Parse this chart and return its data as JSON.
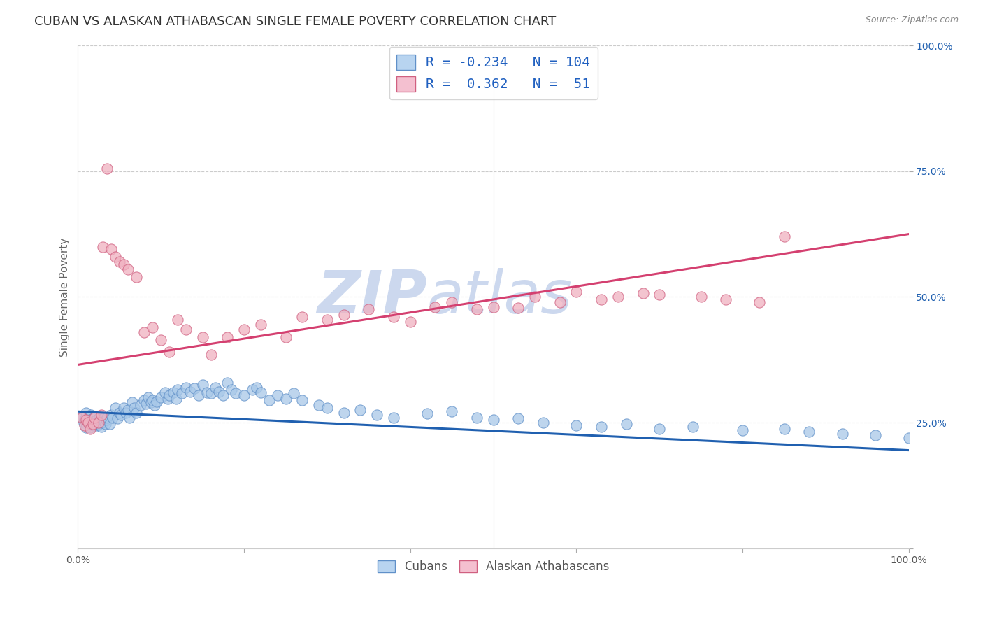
{
  "title": "CUBAN VS ALASKAN ATHABASCAN SINGLE FEMALE POVERTY CORRELATION CHART",
  "source": "Source: ZipAtlas.com",
  "ylabel": "Single Female Poverty",
  "xlim": [
    0.0,
    1.0
  ],
  "ylim": [
    0.0,
    1.0
  ],
  "blue_R": -0.234,
  "blue_N": 104,
  "pink_R": 0.362,
  "pink_N": 51,
  "blue_line_color": "#2060b0",
  "pink_line_color": "#d44070",
  "blue_scatter_fill": "#a8c8e8",
  "blue_scatter_edge": "#6090c8",
  "pink_scatter_fill": "#f0b0c0",
  "pink_scatter_edge": "#d06080",
  "background_color": "#ffffff",
  "watermark_zip": "ZIP",
  "watermark_atlas": "atlas",
  "watermark_color": "#ccd8ee",
  "grid_color": "#cccccc",
  "legend_box_blue": "#b8d4f0",
  "legend_box_pink": "#f4c0d0",
  "legend_text_color": "#2060c0",
  "title_fontsize": 13,
  "axis_label_fontsize": 11,
  "tick_fontsize": 10,
  "blue_trendline_x0": 0.0,
  "blue_trendline_y0": 0.272,
  "blue_trendline_x1": 1.0,
  "blue_trendline_y1": 0.195,
  "pink_trendline_x0": 0.0,
  "pink_trendline_y0": 0.365,
  "pink_trendline_x1": 1.0,
  "pink_trendline_y1": 0.625,
  "blue_x": [
    0.005,
    0.007,
    0.008,
    0.01,
    0.01,
    0.012,
    0.013,
    0.014,
    0.015,
    0.016,
    0.017,
    0.018,
    0.019,
    0.02,
    0.021,
    0.022,
    0.023,
    0.024,
    0.025,
    0.026,
    0.027,
    0.028,
    0.029,
    0.03,
    0.031,
    0.032,
    0.033,
    0.034,
    0.035,
    0.038,
    0.04,
    0.042,
    0.045,
    0.048,
    0.05,
    0.052,
    0.055,
    0.058,
    0.06,
    0.062,
    0.065,
    0.068,
    0.07,
    0.075,
    0.08,
    0.082,
    0.085,
    0.088,
    0.09,
    0.092,
    0.095,
    0.1,
    0.105,
    0.108,
    0.11,
    0.115,
    0.118,
    0.12,
    0.125,
    0.13,
    0.135,
    0.14,
    0.145,
    0.15,
    0.155,
    0.16,
    0.165,
    0.17,
    0.175,
    0.18,
    0.185,
    0.19,
    0.2,
    0.21,
    0.215,
    0.22,
    0.23,
    0.24,
    0.25,
    0.26,
    0.27,
    0.29,
    0.3,
    0.32,
    0.34,
    0.36,
    0.38,
    0.42,
    0.45,
    0.48,
    0.5,
    0.53,
    0.56,
    0.6,
    0.63,
    0.66,
    0.7,
    0.74,
    0.8,
    0.85,
    0.88,
    0.92,
    0.96,
    1.0
  ],
  "blue_y": [
    0.26,
    0.25,
    0.255,
    0.24,
    0.27,
    0.26,
    0.255,
    0.248,
    0.24,
    0.265,
    0.252,
    0.258,
    0.245,
    0.26,
    0.25,
    0.255,
    0.245,
    0.252,
    0.248,
    0.26,
    0.255,
    0.242,
    0.25,
    0.26,
    0.258,
    0.252,
    0.248,
    0.255,
    0.26,
    0.248,
    0.265,
    0.26,
    0.28,
    0.258,
    0.27,
    0.265,
    0.28,
    0.27,
    0.275,
    0.26,
    0.29,
    0.28,
    0.27,
    0.285,
    0.295,
    0.288,
    0.3,
    0.29,
    0.295,
    0.285,
    0.292,
    0.3,
    0.31,
    0.298,
    0.305,
    0.31,
    0.298,
    0.315,
    0.308,
    0.32,
    0.312,
    0.318,
    0.305,
    0.325,
    0.31,
    0.308,
    0.32,
    0.312,
    0.305,
    0.33,
    0.315,
    0.308,
    0.305,
    0.315,
    0.32,
    0.31,
    0.295,
    0.305,
    0.298,
    0.308,
    0.295,
    0.285,
    0.28,
    0.27,
    0.275,
    0.265,
    0.26,
    0.268,
    0.272,
    0.26,
    0.255,
    0.258,
    0.25,
    0.245,
    0.242,
    0.248,
    0.238,
    0.242,
    0.235,
    0.238,
    0.232,
    0.228,
    0.225,
    0.22
  ],
  "pink_x": [
    0.005,
    0.008,
    0.01,
    0.012,
    0.015,
    0.018,
    0.02,
    0.025,
    0.028,
    0.03,
    0.035,
    0.04,
    0.045,
    0.05,
    0.055,
    0.06,
    0.07,
    0.08,
    0.09,
    0.1,
    0.11,
    0.12,
    0.13,
    0.15,
    0.16,
    0.18,
    0.2,
    0.22,
    0.25,
    0.27,
    0.3,
    0.32,
    0.35,
    0.38,
    0.4,
    0.43,
    0.45,
    0.48,
    0.5,
    0.53,
    0.55,
    0.58,
    0.6,
    0.63,
    0.65,
    0.68,
    0.7,
    0.75,
    0.78,
    0.82,
    0.85
  ],
  "pink_y": [
    0.26,
    0.245,
    0.255,
    0.25,
    0.238,
    0.248,
    0.26,
    0.25,
    0.265,
    0.6,
    0.755,
    0.595,
    0.58,
    0.57,
    0.565,
    0.555,
    0.54,
    0.43,
    0.44,
    0.415,
    0.39,
    0.455,
    0.435,
    0.42,
    0.385,
    0.42,
    0.435,
    0.445,
    0.42,
    0.46,
    0.455,
    0.465,
    0.475,
    0.46,
    0.45,
    0.48,
    0.49,
    0.475,
    0.48,
    0.478,
    0.5,
    0.49,
    0.51,
    0.495,
    0.5,
    0.508,
    0.505,
    0.5,
    0.495,
    0.49,
    0.62
  ]
}
